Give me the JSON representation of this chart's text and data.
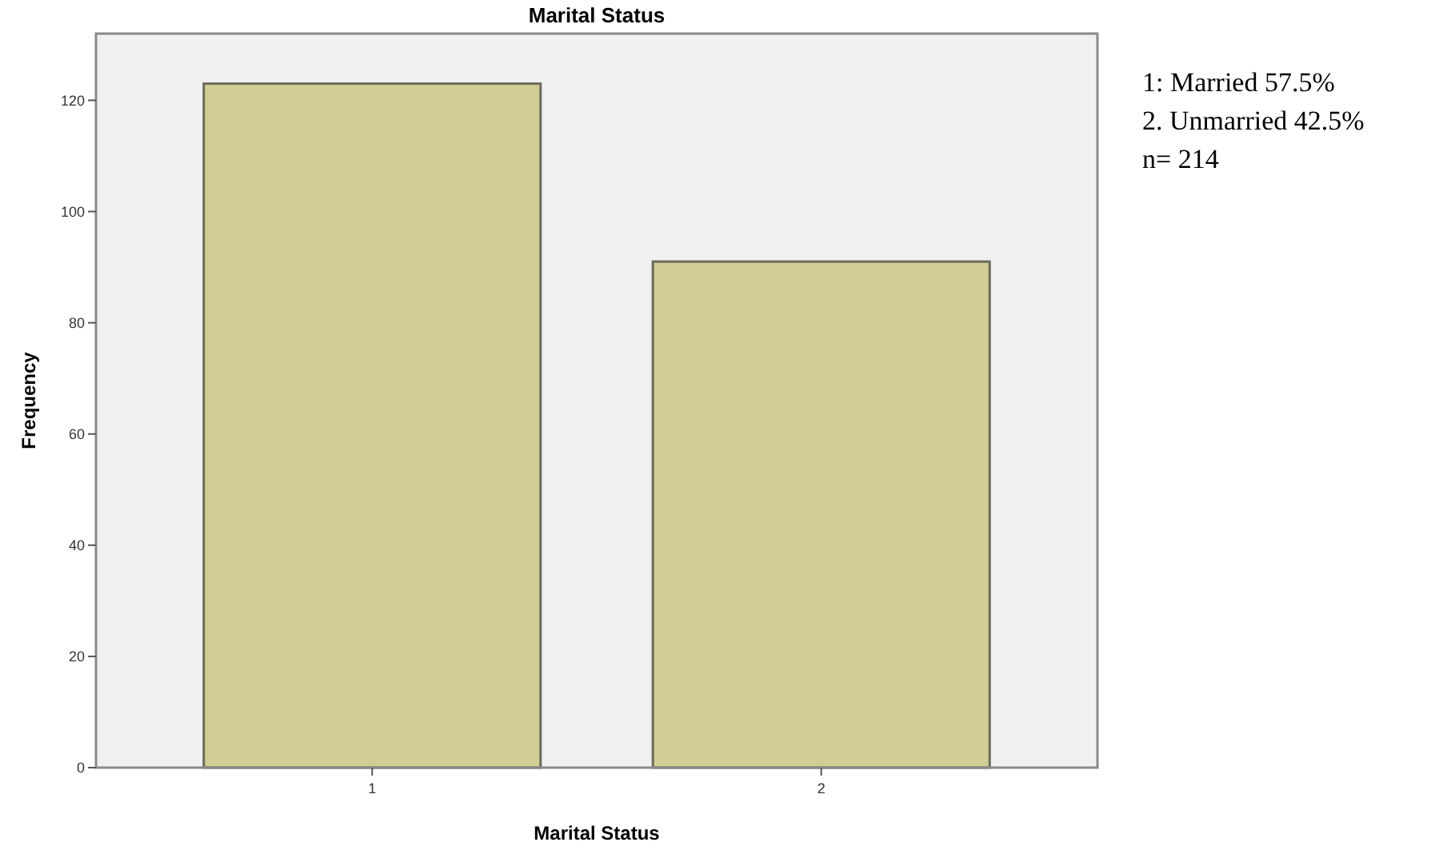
{
  "chart_data": {
    "type": "bar",
    "title": "Marital Status",
    "xlabel": "Marital Status",
    "ylabel": "Frequency",
    "categories": [
      "1",
      "2"
    ],
    "values": [
      123,
      91
    ],
    "color": "#d2cd94",
    "ylim": [
      0,
      132
    ],
    "yticks": [
      0,
      20,
      40,
      60,
      80,
      100,
      120
    ],
    "grid": false,
    "annotations": [
      "1: Married 57.5%",
      "2. Unmarried 42.5%",
      "n= 214"
    ]
  }
}
